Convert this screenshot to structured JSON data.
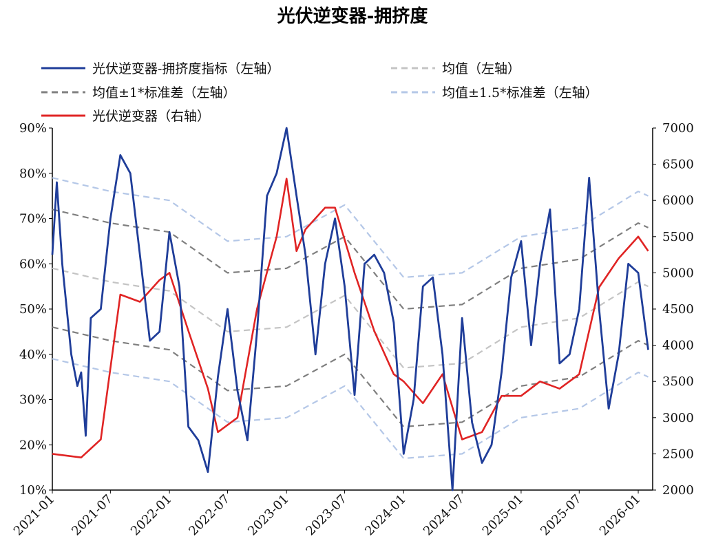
{
  "chart_data": {
    "type": "line",
    "title": "光伏逆变器-拥挤度",
    "x_ticks": [
      "2021-01",
      "2021-07",
      "2022-01",
      "2022-07",
      "2023-01",
      "2023-07",
      "2024-01",
      "2024-07",
      "2025-01",
      "2025-07",
      "2026-01"
    ],
    "y_left_ticks": [
      "10%",
      "20%",
      "30%",
      "40%",
      "50%",
      "60%",
      "70%",
      "80%",
      "90%"
    ],
    "y_right_ticks": [
      "2000",
      "2500",
      "3000",
      "3500",
      "4000",
      "4500",
      "5000",
      "5500",
      "6000",
      "6500",
      "7000"
    ],
    "y_left_range": [
      10,
      90
    ],
    "y_right_range": [
      2000,
      7000
    ],
    "legend_position": "top",
    "series": [
      {
        "name": "光伏逆变器-拥挤度指标（左轴）",
        "axis": "left",
        "color": "#1f3d99",
        "style": "solid",
        "points": [
          [
            "2021-01",
            62
          ],
          [
            "2021-01-15",
            78
          ],
          [
            "2021-02",
            60
          ],
          [
            "2021-03",
            40
          ],
          [
            "2021-03-20",
            33
          ],
          [
            "2021-04",
            36
          ],
          [
            "2021-04-15",
            22
          ],
          [
            "2021-05",
            48
          ],
          [
            "2021-06",
            50
          ],
          [
            "2021-07",
            70
          ],
          [
            "2021-08",
            84
          ],
          [
            "2021-09",
            80
          ],
          [
            "2021-10",
            62
          ],
          [
            "2021-11",
            43
          ],
          [
            "2021-12",
            45
          ],
          [
            "2022-01",
            67
          ],
          [
            "2022-02",
            55
          ],
          [
            "2022-03",
            24
          ],
          [
            "2022-04",
            21
          ],
          [
            "2022-05",
            14
          ],
          [
            "2022-06",
            35
          ],
          [
            "2022-07",
            50
          ],
          [
            "2022-08",
            32
          ],
          [
            "2022-09",
            21
          ],
          [
            "2022-10",
            45
          ],
          [
            "2022-11",
            75
          ],
          [
            "2022-12",
            80
          ],
          [
            "2023-01",
            90
          ],
          [
            "2023-02",
            75
          ],
          [
            "2023-03",
            62
          ],
          [
            "2023-04",
            40
          ],
          [
            "2023-05",
            60
          ],
          [
            "2023-06",
            70
          ],
          [
            "2023-07",
            55
          ],
          [
            "2023-08",
            31
          ],
          [
            "2023-09",
            60
          ],
          [
            "2023-10",
            62
          ],
          [
            "2023-11",
            58
          ],
          [
            "2023-12",
            47
          ],
          [
            "2024-01",
            18
          ],
          [
            "2024-02",
            30
          ],
          [
            "2024-03",
            55
          ],
          [
            "2024-04",
            57
          ],
          [
            "2024-05",
            40
          ],
          [
            "2024-06",
            10
          ],
          [
            "2024-07",
            48
          ],
          [
            "2024-08",
            25
          ],
          [
            "2024-09",
            16
          ],
          [
            "2024-10",
            20
          ],
          [
            "2024-11",
            36
          ],
          [
            "2024-12",
            57
          ],
          [
            "2025-01",
            65
          ],
          [
            "2025-02",
            42
          ],
          [
            "2025-03",
            60
          ],
          [
            "2025-04",
            72
          ],
          [
            "2025-05",
            38
          ],
          [
            "2025-06",
            40
          ],
          [
            "2025-07",
            50
          ],
          [
            "2025-08",
            79
          ],
          [
            "2025-09",
            50
          ],
          [
            "2025-10",
            28
          ],
          [
            "2025-11",
            40
          ],
          [
            "2025-12",
            60
          ],
          [
            "2026-01",
            58
          ],
          [
            "2026-02",
            41
          ]
        ]
      },
      {
        "name": "均值（左轴）",
        "axis": "left",
        "color": "#c4c4c4",
        "style": "dashed",
        "points": []
      },
      {
        "name": "均值±1*标准差（左轴）",
        "axis": "left",
        "color": "#7f7f7f",
        "style": "dashed",
        "points": []
      },
      {
        "name": "均值±1.5*标准差（左轴）",
        "axis": "left",
        "color": "#b4c7e7",
        "style": "dashed",
        "points": []
      },
      {
        "name": "光伏逆变器（右轴）",
        "axis": "right",
        "color": "#e02424",
        "style": "solid",
        "points": []
      }
    ]
  }
}
